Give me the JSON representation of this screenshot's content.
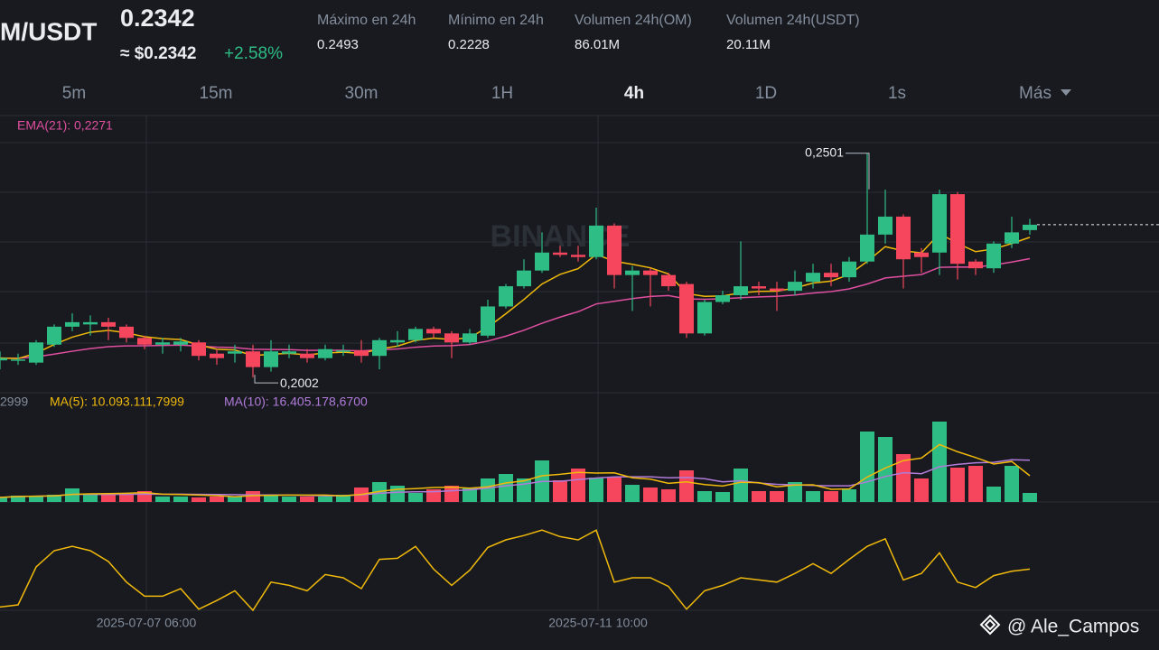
{
  "header": {
    "pair": "M/USDT",
    "price": "0.2342",
    "usd_price": "≈ $0.2342",
    "change": "+2.58%",
    "stats": [
      {
        "label": "Máximo en 24h",
        "value": "0.2493"
      },
      {
        "label": "Mínimo en 24h",
        "value": "0.2228"
      },
      {
        "label": "Volumen 24h(OM)",
        "value": "86.01M"
      },
      {
        "label": "Volumen 24h(USDT)",
        "value": "20.11M"
      }
    ]
  },
  "timeframes": [
    "5m",
    "15m",
    "30m",
    "1H",
    "4h",
    "1D",
    "1s",
    "Más"
  ],
  "watermark": "BINANCE",
  "credit": "@ Ale_Campos",
  "chart_data": {
    "type": "candlestick",
    "up_color": "#2ebd85",
    "down_color": "#f6465d",
    "price_label": "EMA(21): 0,2271",
    "volume_labels": [
      "2999",
      "MA(5): 10.093.111,7999",
      "MA(10): 16.405.178,6700"
    ],
    "ylim": [
      0.1968,
      0.2585
    ],
    "open": [
      0.204,
      0.204,
      0.2035,
      0.2075,
      0.2115,
      0.212,
      0.2125,
      0.2115,
      0.209,
      0.2075,
      0.2075,
      0.208,
      0.2055,
      0.2055,
      0.206,
      0.2025,
      0.2055,
      0.2055,
      0.2045,
      0.206,
      0.2062,
      0.205,
      0.208,
      0.2085,
      0.211,
      0.21,
      0.208,
      0.2095,
      0.216,
      0.2205,
      0.224,
      0.228,
      0.2275,
      0.227,
      0.234,
      0.223,
      0.224,
      0.223,
      0.221,
      0.21,
      0.217,
      0.2185,
      0.2205,
      0.22,
      0.2195,
      0.2215,
      0.2235,
      0.2225,
      0.226,
      0.232,
      0.236,
      0.228,
      0.228,
      0.241,
      0.226,
      0.2245,
      0.23,
      0.233
    ],
    "high": [
      0.206,
      0.2055,
      0.2085,
      0.212,
      0.2145,
      0.214,
      0.2135,
      0.212,
      0.2095,
      0.209,
      0.209,
      0.2085,
      0.2065,
      0.2075,
      0.2075,
      0.2085,
      0.2075,
      0.2065,
      0.2075,
      0.2075,
      0.2085,
      0.209,
      0.2105,
      0.2115,
      0.2115,
      0.2105,
      0.211,
      0.2175,
      0.221,
      0.2265,
      0.2325,
      0.2295,
      0.2295,
      0.238,
      0.2345,
      0.225,
      0.2245,
      0.2235,
      0.2215,
      0.2175,
      0.2195,
      0.2305,
      0.2215,
      0.2215,
      0.224,
      0.2255,
      0.2255,
      0.227,
      0.2501,
      0.242,
      0.2365,
      0.229,
      0.242,
      0.2415,
      0.2265,
      0.2305,
      0.236,
      0.2355
    ],
    "low": [
      0.202,
      0.203,
      0.203,
      0.207,
      0.2105,
      0.2095,
      0.2085,
      0.208,
      0.2065,
      0.2055,
      0.206,
      0.204,
      0.203,
      0.2035,
      0.2002,
      0.2015,
      0.2045,
      0.2035,
      0.204,
      0.205,
      0.2035,
      0.202,
      0.207,
      0.208,
      0.209,
      0.2045,
      0.2075,
      0.209,
      0.2155,
      0.22,
      0.2235,
      0.227,
      0.226,
      0.2265,
      0.22,
      0.215,
      0.216,
      0.2195,
      0.209,
      0.2095,
      0.2165,
      0.2175,
      0.2185,
      0.215,
      0.2185,
      0.22,
      0.2205,
      0.2215,
      0.2255,
      0.23,
      0.22,
      0.2235,
      0.223,
      0.222,
      0.223,
      0.2235,
      0.229,
      0.232
    ],
    "close": [
      0.2045,
      0.2042,
      0.208,
      0.2115,
      0.2125,
      0.2125,
      0.2115,
      0.209,
      0.2075,
      0.208,
      0.2082,
      0.205,
      0.2045,
      0.206,
      0.2025,
      0.206,
      0.206,
      0.2045,
      0.2065,
      0.2062,
      0.205,
      0.2085,
      0.2085,
      0.211,
      0.21,
      0.208,
      0.21,
      0.216,
      0.2205,
      0.224,
      0.228,
      0.2275,
      0.227,
      0.234,
      0.223,
      0.224,
      0.223,
      0.2205,
      0.21,
      0.217,
      0.2185,
      0.2205,
      0.22,
      0.2195,
      0.2215,
      0.2235,
      0.2225,
      0.226,
      0.232,
      0.236,
      0.2265,
      0.227,
      0.241,
      0.2255,
      0.2245,
      0.23,
      0.2325,
      0.2342
    ],
    "annotations": [
      {
        "index": 48,
        "value": 0.2501,
        "label": "0,2501"
      },
      {
        "index": 14,
        "value": 0.2002,
        "label": "0,2002"
      }
    ],
    "xticks": [
      {
        "value": 8,
        "label": "2025-07-07 06:00"
      },
      {
        "value": 33,
        "label": "2025-07-11 10:00"
      }
    ],
    "volume": {
      "ylim": [
        0,
        35000000
      ],
      "values": [
        1750000,
        2450000,
        2450000,
        2800000,
        5250000,
        2800000,
        2800000,
        3150000,
        4200000,
        2100000,
        2100000,
        1750000,
        2100000,
        2100000,
        4200000,
        2800000,
        2100000,
        2100000,
        2100000,
        2800000,
        5600000,
        7700000,
        6300000,
        3500000,
        4900000,
        6300000,
        5600000,
        9100000,
        10850000,
        9100000,
        16100000,
        8400000,
        12950000,
        9450000,
        9450000,
        6650000,
        5600000,
        4900000,
        12250000,
        4200000,
        3850000,
        12950000,
        4200000,
        4200000,
        7700000,
        4200000,
        4200000,
        4900000,
        27300000,
        25200000,
        18550000,
        9100000,
        31150000,
        13300000,
        14000000,
        5950000,
        14000000,
        3500000
      ]
    },
    "oscillator": {
      "ylim": [
        0,
        100
      ],
      "color": "#f0b90b",
      "values": [
        3,
        5,
        40,
        55,
        59,
        55,
        45,
        26,
        13,
        13,
        20,
        1,
        9,
        18,
        0,
        26,
        23,
        18,
        33,
        30,
        20,
        47,
        48,
        59,
        38,
        23,
        37,
        58,
        65,
        69,
        74,
        68,
        65,
        74,
        26,
        30,
        30,
        22,
        1,
        18,
        23,
        30,
        28,
        26,
        34,
        43,
        34,
        47,
        59,
        66,
        28,
        34,
        53,
        26,
        21,
        32,
        36,
        38
      ]
    }
  }
}
